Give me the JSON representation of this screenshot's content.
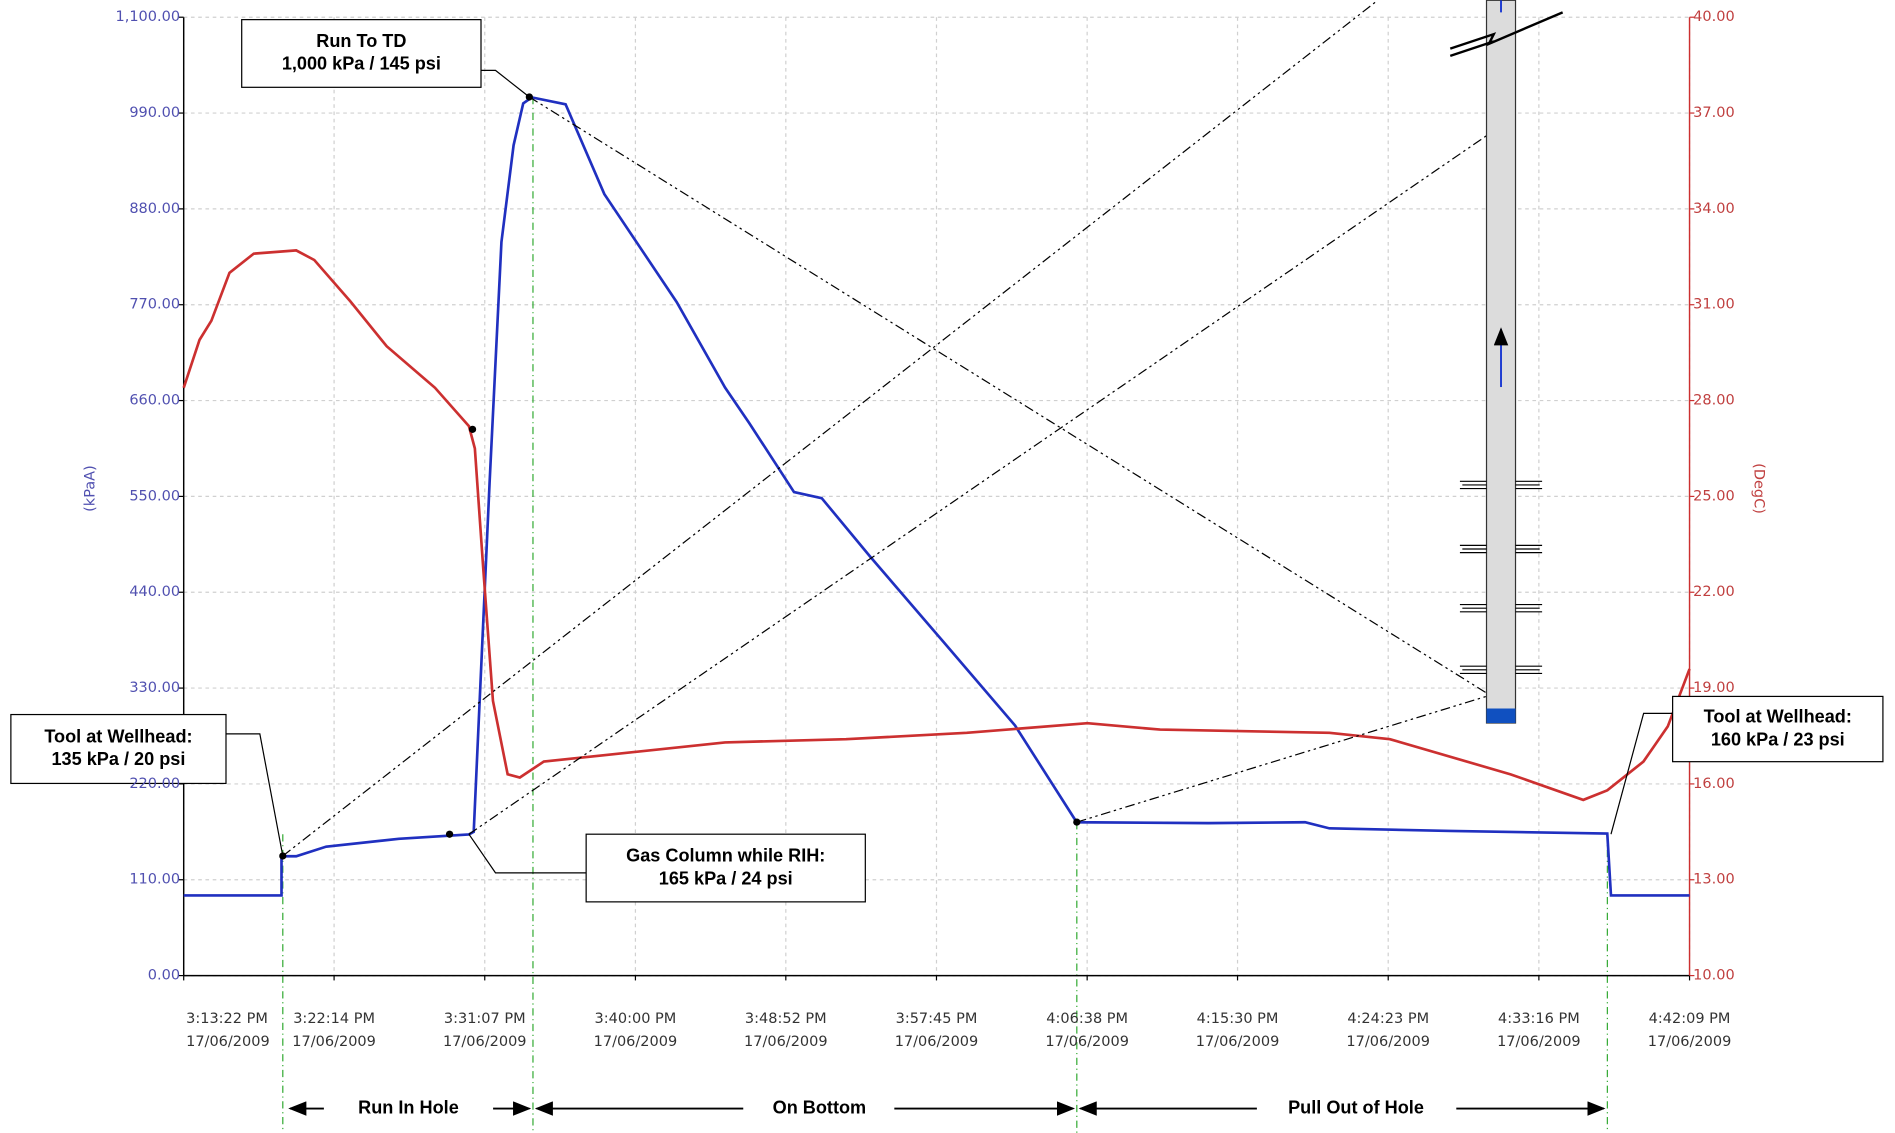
{
  "chart_data": {
    "type": "line",
    "y_label": "(kPaA)",
    "y2_label": "(DegC)",
    "grid": true,
    "xlim": [
      54802,
      60129
    ],
    "xticks": [
      {
        "value": 54802,
        "label": [
          "3:13:22 PM",
          "17/06/2009"
        ]
      },
      {
        "value": 55334,
        "label": [
          "3:22:14 PM",
          "17/06/2009"
        ]
      },
      {
        "value": 55867,
        "label": [
          "3:31:07 PM",
          "17/06/2009"
        ]
      },
      {
        "value": 56400,
        "label": [
          "3:40:00 PM",
          "17/06/2009"
        ]
      },
      {
        "value": 56932,
        "label": [
          "3:48:52 PM",
          "17/06/2009"
        ]
      },
      {
        "value": 57465,
        "label": [
          "3:57:45 PM",
          "17/06/2009"
        ]
      },
      {
        "value": 57998,
        "label": [
          "4:06:38 PM",
          "17/06/2009"
        ]
      },
      {
        "value": 58530,
        "label": [
          "4:15:30 PM",
          "17/06/2009"
        ]
      },
      {
        "value": 59063,
        "label": [
          "4:24:23 PM",
          "17/06/2009"
        ]
      },
      {
        "value": 59596,
        "label": [
          "4:33:16 PM",
          "17/06/2009"
        ]
      },
      {
        "value": 60129,
        "label": [
          "4:42:09 PM",
          "17/06/2009"
        ]
      }
    ],
    "ylim": [
      0,
      1100
    ],
    "yticks": [
      {
        "value": 0,
        "label": "0.00"
      },
      {
        "value": 110,
        "label": "110.00"
      },
      {
        "value": 220,
        "label": "220.00"
      },
      {
        "value": 330,
        "label": "330.00"
      },
      {
        "value": 440,
        "label": "440.00"
      },
      {
        "value": 550,
        "label": "550.00"
      },
      {
        "value": 660,
        "label": "660.00"
      },
      {
        "value": 770,
        "label": "770.00"
      },
      {
        "value": 880,
        "label": "880.00"
      },
      {
        "value": 990,
        "label": "990.00"
      },
      {
        "value": 1100,
        "label": "1,100.00"
      }
    ],
    "y2lim": [
      10,
      40
    ],
    "y2ticks": [
      {
        "value": 10,
        "label": "10.00"
      },
      {
        "value": 13,
        "label": "13.00"
      },
      {
        "value": 16,
        "label": "16.00"
      },
      {
        "value": 19,
        "label": "19.00"
      },
      {
        "value": 22,
        "label": "22.00"
      },
      {
        "value": 25,
        "label": "25.00"
      },
      {
        "value": 28,
        "label": "28.00"
      },
      {
        "value": 31,
        "label": "31.00"
      },
      {
        "value": 34,
        "label": "34.00"
      },
      {
        "value": 37,
        "label": "37.00"
      },
      {
        "value": 40,
        "label": "40.00"
      }
    ],
    "series": [
      {
        "color": "#2030c0",
        "x": [
          54802,
          55148,
          55148,
          55200,
          55306,
          55563,
          55811,
          55828,
          55845,
          55884,
          55926,
          55969,
          56003,
          56033,
          56153,
          56290,
          56546,
          56717,
          56803,
          56961,
          57059,
          57230,
          57487,
          57743,
          57961,
          58427,
          58769,
          58855,
          59282,
          59838,
          59851,
          60129
        ],
        "values": [
          92,
          92,
          137,
          137,
          148,
          157,
          162,
          165,
          287,
          565,
          842,
          953,
          1001,
          1008,
          1000,
          897,
          773,
          675,
          634,
          555,
          548,
          481,
          384,
          287,
          176,
          175,
          176,
          169,
          166,
          163,
          92,
          92
        ]
      },
      {
        "color": "#cc3030",
        "axis": "y2",
        "x": [
          54802,
          54858,
          54900,
          54964,
          55050,
          55200,
          55264,
          55392,
          55520,
          55691,
          55811,
          55832,
          55862,
          55896,
          55948,
          55991,
          56076,
          56290,
          56717,
          57145,
          57572,
          57999,
          58256,
          58855,
          59069,
          59496,
          59753,
          59838,
          59966,
          60052,
          60129
        ],
        "values": [
          28.4,
          29.9,
          30.5,
          32.0,
          32.6,
          32.7,
          32.4,
          31.1,
          29.7,
          28.4,
          27.2,
          26.5,
          22.7,
          18.6,
          16.3,
          16.2,
          16.7,
          16.9,
          17.3,
          17.4,
          17.6,
          17.9,
          17.7,
          17.6,
          17.4,
          16.3,
          15.5,
          15.8,
          16.7,
          17.8,
          19.6
        ]
      }
    ],
    "annotations": [
      {
        "lines": [
          "Run To TD",
          "1,000 kPa  /  145 psi"
        ]
      },
      {
        "lines": [
          "Tool at Wellhead:",
          "135 kPa  /  20 psi"
        ]
      },
      {
        "lines": [
          "Gas Column while RIH:",
          "165 kPa  /  24 psi"
        ]
      },
      {
        "lines": [
          "Tool at Wellhead:",
          "160 kPa  /  23 psi"
        ]
      }
    ],
    "phases": [
      "Run In Hole",
      "On Bottom",
      "Pull Out of Hole"
    ]
  }
}
